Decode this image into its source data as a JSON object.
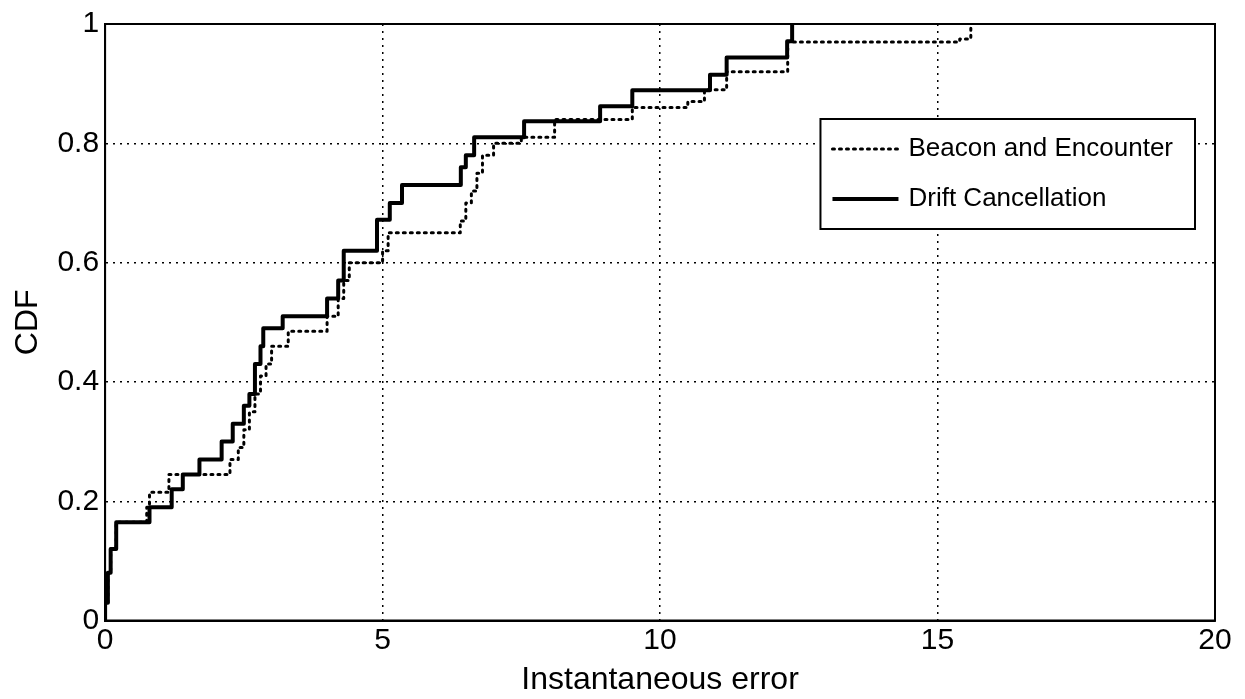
{
  "chart_data": {
    "type": "step",
    "xlabel": "Instantaneous error",
    "ylabel": "CDF",
    "xlim": [
      0,
      20
    ],
    "xticks": [
      0,
      5,
      10,
      15,
      20
    ],
    "ylim": [
      0,
      1
    ],
    "yticks": [
      0,
      0.2,
      0.4,
      0.6,
      0.8,
      1
    ],
    "grid": true,
    "legend": "top right",
    "marker": "none",
    "series": [
      {
        "name": "Beacon and Encounter",
        "color": "#000000",
        "line_style": "dotted",
        "x": [
          0,
          0,
          0.05,
          0.1,
          0.2,
          0.75,
          0.8,
          1.15,
          2.25,
          2.4,
          2.5,
          2.6,
          2.7,
          2.8,
          2.9,
          3.0,
          3.3,
          4.0,
          4.2,
          4.3,
          4.4,
          5.0,
          5.1,
          6.4,
          6.5,
          6.6,
          6.7,
          6.8,
          7.0,
          7.5,
          8.1,
          9.5,
          10.5,
          10.8,
          11.2,
          12.3,
          15.4,
          15.6
        ],
        "values": [
          0,
          0.03,
          0.08,
          0.12,
          0.165,
          0.19,
          0.215,
          0.245,
          0.27,
          0.29,
          0.32,
          0.35,
          0.38,
          0.41,
          0.43,
          0.46,
          0.485,
          0.51,
          0.54,
          0.57,
          0.6,
          0.62,
          0.65,
          0.67,
          0.7,
          0.72,
          0.75,
          0.78,
          0.8,
          0.81,
          0.84,
          0.86,
          0.87,
          0.89,
          0.92,
          0.97,
          0.975,
          1
        ]
      },
      {
        "name": "Drift Cancellation",
        "color": "#000000",
        "line_style": "solid",
        "x": [
          0,
          0,
          0.05,
          0.1,
          0.2,
          0.8,
          1.2,
          1.4,
          1.7,
          2.1,
          2.3,
          2.5,
          2.6,
          2.7,
          2.8,
          2.85,
          3.2,
          4.0,
          4.2,
          4.3,
          4.9,
          5.13,
          5.35,
          6.41,
          6.5,
          6.65,
          7.55,
          8.92,
          9.5,
          10.9,
          11.2,
          12.29,
          12.38
        ],
        "values": [
          0,
          0.03,
          0.08,
          0.12,
          0.165,
          0.19,
          0.22,
          0.245,
          0.27,
          0.3,
          0.33,
          0.36,
          0.38,
          0.43,
          0.46,
          0.49,
          0.51,
          0.54,
          0.57,
          0.62,
          0.672,
          0.7,
          0.73,
          0.76,
          0.78,
          0.81,
          0.837,
          0.862,
          0.889,
          0.915,
          0.944,
          0.971,
          1
        ]
      }
    ]
  }
}
